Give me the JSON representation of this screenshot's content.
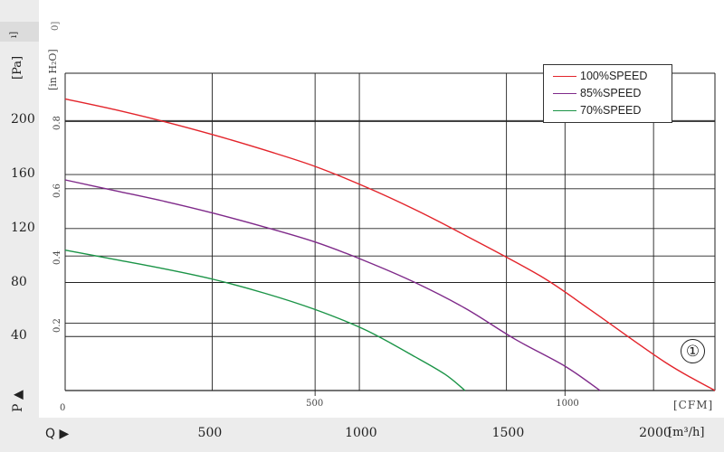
{
  "units": {
    "pressure_pa": "[Pa]",
    "pressure_inh2o": "[in H₂O]",
    "flow_cfm": "[CFM]",
    "flow_m3h": "[m³/h]",
    "pressure_symbol": "P ▲",
    "flow_symbol": "Q ▶"
  },
  "header_fragments": [
    "ı]",
    "0]"
  ],
  "zero_label": "0",
  "badge": "①",
  "chart_data": {
    "type": "line",
    "title": "",
    "x_axis": {
      "label": "[CFM]",
      "range": [
        0,
        1300
      ],
      "ticks": [
        500,
        1000
      ],
      "tick_labels": [
        "500",
        "1000"
      ],
      "secondary": {
        "label": "[m³/h]",
        "ticks": [
          500,
          1000,
          1500,
          2000
        ],
        "tick_labels": [
          "500",
          "1000",
          "1500",
          "2000"
        ]
      }
    },
    "y_axis": {
      "label": "[Pa]",
      "range": [
        0,
        235
      ],
      "ticks": [
        40,
        80,
        120,
        160,
        200
      ],
      "tick_labels": [
        "40",
        "80",
        "120",
        "160",
        "200"
      ],
      "secondary": {
        "label": "[in H₂O]",
        "ticks": [
          0.2,
          0.4,
          0.6,
          0.8
        ],
        "tick_labels": [
          "0.2",
          "0.4",
          "0.6",
          "0.8"
        ]
      }
    },
    "grid": true,
    "legend_position": "top-right",
    "series": [
      {
        "name": "100%SPEED",
        "color": "#e3242b",
        "points": [
          [
            0,
            216
          ],
          [
            100,
            208
          ],
          [
            200,
            199
          ],
          [
            300,
            189
          ],
          [
            400,
            178
          ],
          [
            500,
            166
          ],
          [
            600,
            151
          ],
          [
            700,
            134
          ],
          [
            800,
            115
          ],
          [
            950,
            85
          ],
          [
            1050,
            60
          ],
          [
            1200,
            21
          ],
          [
            1300,
            0
          ]
        ]
      },
      {
        "name": "85%SPEED",
        "color": "#7f2a8a",
        "points": [
          [
            0,
            156
          ],
          [
            100,
            148
          ],
          [
            200,
            140
          ],
          [
            300,
            131
          ],
          [
            400,
            121
          ],
          [
            500,
            110
          ],
          [
            600,
            96
          ],
          [
            700,
            80
          ],
          [
            800,
            61
          ],
          [
            900,
            38
          ],
          [
            1000,
            18
          ],
          [
            1070,
            0
          ]
        ]
      },
      {
        "name": "70%SPEED",
        "color": "#1b9447",
        "points": [
          [
            0,
            104
          ],
          [
            100,
            97
          ],
          [
            200,
            90
          ],
          [
            300,
            82
          ],
          [
            400,
            72
          ],
          [
            500,
            60
          ],
          [
            600,
            45
          ],
          [
            700,
            25
          ],
          [
            760,
            12
          ],
          [
            800,
            0
          ]
        ]
      }
    ]
  }
}
